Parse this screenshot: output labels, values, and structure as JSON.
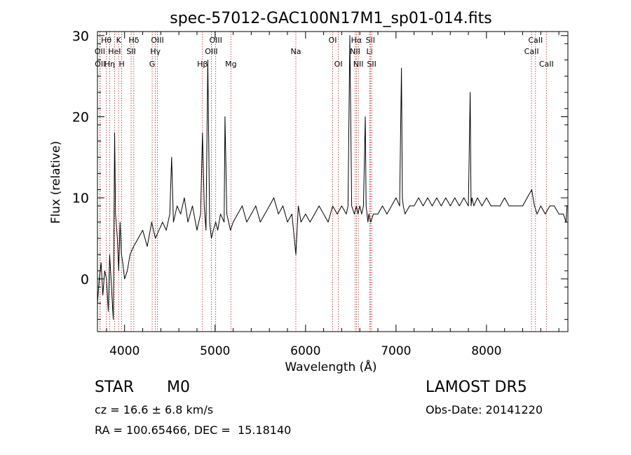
{
  "chart_data": {
    "type": "line",
    "title": "spec-57012-GAC100N17M1_sp01-014.fits",
    "xlabel": "Wavelength (Å)",
    "ylabel": "Flux (relative)",
    "xlim": [
      3700,
      8900
    ],
    "ylim": [
      -6.5,
      30.5
    ],
    "xticks": [
      "4000",
      "5000",
      "6000",
      "7000",
      "8000"
    ],
    "yticks": [
      "0",
      "10",
      "20",
      "30"
    ],
    "xtick_values": [
      4000,
      5000,
      6000,
      7000,
      8000
    ],
    "ytick_values": [
      0,
      10,
      20,
      30
    ],
    "grid": false,
    "series": [
      {
        "x": [
          3700,
          3720,
          3740,
          3760,
          3780,
          3800,
          3820,
          3835,
          3850,
          3860,
          3875,
          3890,
          3900,
          3920,
          3935,
          3950,
          3965,
          3980,
          4000,
          4030,
          4060,
          4100,
          4150,
          4200,
          4250,
          4300,
          4340,
          4380,
          4420,
          4460,
          4500,
          4520,
          4540,
          4580,
          4620,
          4660,
          4700,
          4750,
          4800,
          4840,
          4861,
          4880,
          4900,
          4920,
          4940,
          4959,
          4980,
          5007,
          5030,
          5060,
          5100,
          5110,
          5130,
          5170,
          5200,
          5250,
          5300,
          5350,
          5400,
          5450,
          5500,
          5550,
          5600,
          5650,
          5700,
          5750,
          5800,
          5850,
          5893,
          5920,
          5950,
          6000,
          6050,
          6100,
          6150,
          6200,
          6250,
          6300,
          6350,
          6400,
          6450,
          6470,
          6490,
          6510,
          6540,
          6563,
          6580,
          6600,
          6620,
          6640,
          6660,
          6670,
          6690,
          6700,
          6720,
          6750,
          6800,
          6850,
          6900,
          6950,
          7000,
          7040,
          7060,
          7070,
          7080,
          7100,
          7150,
          7200,
          7250,
          7300,
          7350,
          7400,
          7450,
          7500,
          7550,
          7600,
          7650,
          7700,
          7750,
          7800,
          7820,
          7830,
          7840,
          7860,
          7900,
          7950,
          8000,
          8050,
          8100,
          8150,
          8200,
          8250,
          8300,
          8350,
          8400,
          8450,
          8500,
          8530,
          8560,
          8600,
          8650,
          8700,
          8750,
          8800,
          8850,
          8880,
          8890
        ],
        "y": [
          -3,
          0,
          2,
          -2,
          1,
          0,
          -4,
          3,
          0,
          -2,
          -5,
          18,
          8,
          5,
          1,
          7,
          3,
          2,
          0,
          1,
          3,
          4,
          5,
          6,
          4,
          7,
          5,
          6,
          7,
          6,
          8,
          15,
          7,
          9,
          8,
          10,
          7,
          9,
          6,
          8,
          18,
          9,
          6,
          27,
          7,
          5,
          6,
          7,
          6,
          8,
          7,
          20,
          8,
          6,
          7,
          8,
          9,
          7,
          8,
          9,
          7,
          8,
          9,
          10,
          8,
          9,
          7,
          8,
          3,
          9,
          7,
          8,
          7,
          8,
          9,
          8,
          7,
          9,
          8,
          9,
          8,
          9,
          30,
          9,
          8,
          9,
          8,
          9,
          8,
          9,
          20,
          9,
          7,
          8,
          7,
          8,
          8,
          9,
          8,
          9,
          10,
          9,
          26,
          10,
          9,
          8,
          9,
          9,
          10,
          9,
          10,
          9,
          10,
          9,
          10,
          9,
          10,
          9,
          10,
          9,
          23,
          9,
          10,
          9,
          10,
          9,
          10,
          9,
          9,
          9,
          10,
          9,
          9,
          9,
          9,
          10,
          11,
          9,
          8,
          9,
          8,
          9,
          9,
          8,
          8,
          7,
          9
        ]
      }
    ],
    "line_markers": [
      {
        "label": "Hθ",
        "x": 3798,
        "row": 1
      },
      {
        "label": "OII",
        "x": 3727,
        "row": 2
      },
      {
        "label": "OII",
        "x": 3729,
        "row": 3
      },
      {
        "label": "Hη",
        "x": 3835,
        "row": 3
      },
      {
        "label": "HeI",
        "x": 3889,
        "row": 2
      },
      {
        "label": "K",
        "x": 3934,
        "row": 1
      },
      {
        "label": "H",
        "x": 3968,
        "row": 3
      },
      {
        "label": "SII",
        "x": 4072,
        "row": 2
      },
      {
        "label": "Hδ",
        "x": 4102,
        "row": 1
      },
      {
        "label": "OIII",
        "x": 4363,
        "row": 1
      },
      {
        "label": "Hγ",
        "x": 4340,
        "row": 2
      },
      {
        "label": "G",
        "x": 4305,
        "row": 3
      },
      {
        "label": "OIII",
        "x": 5007,
        "row": 1
      },
      {
        "label": "OIII",
        "x": 4959,
        "row": 2
      },
      {
        "label": "Hβ",
        "x": 4861,
        "row": 3
      },
      {
        "label": "Mg",
        "x": 5175,
        "row": 3
      },
      {
        "label": "Na",
        "x": 5893,
        "row": 2
      },
      {
        "label": "OI",
        "x": 6300,
        "row": 1
      },
      {
        "label": "OI",
        "x": 6363,
        "row": 3
      },
      {
        "label": "Hα",
        "x": 6563,
        "row": 1
      },
      {
        "label": "NII",
        "x": 6548,
        "row": 2
      },
      {
        "label": "NII",
        "x": 6584,
        "row": 3
      },
      {
        "label": "SII",
        "x": 6717,
        "row": 1
      },
      {
        "label": "Li",
        "x": 6708,
        "row": 2
      },
      {
        "label": "SII",
        "x": 6731,
        "row": 3
      },
      {
        "label": "CaII",
        "x": 8542,
        "row": 1
      },
      {
        "label": "CaII",
        "x": 8498,
        "row": 2
      },
      {
        "label": "CaII",
        "x": 8662,
        "row": 3
      }
    ]
  },
  "footer": {
    "object_class": "STAR",
    "subclass": "M0",
    "survey": "LAMOST DR5",
    "cz": "cz = 16.6 ± 6.8 km/s",
    "obs_date": "Obs-Date: 20141220",
    "coords": "RA = 100.65466, DEC =  15.18140"
  },
  "colors": {
    "spectrum": "#000000",
    "markers": "#b22222",
    "background": "#ffffff"
  }
}
